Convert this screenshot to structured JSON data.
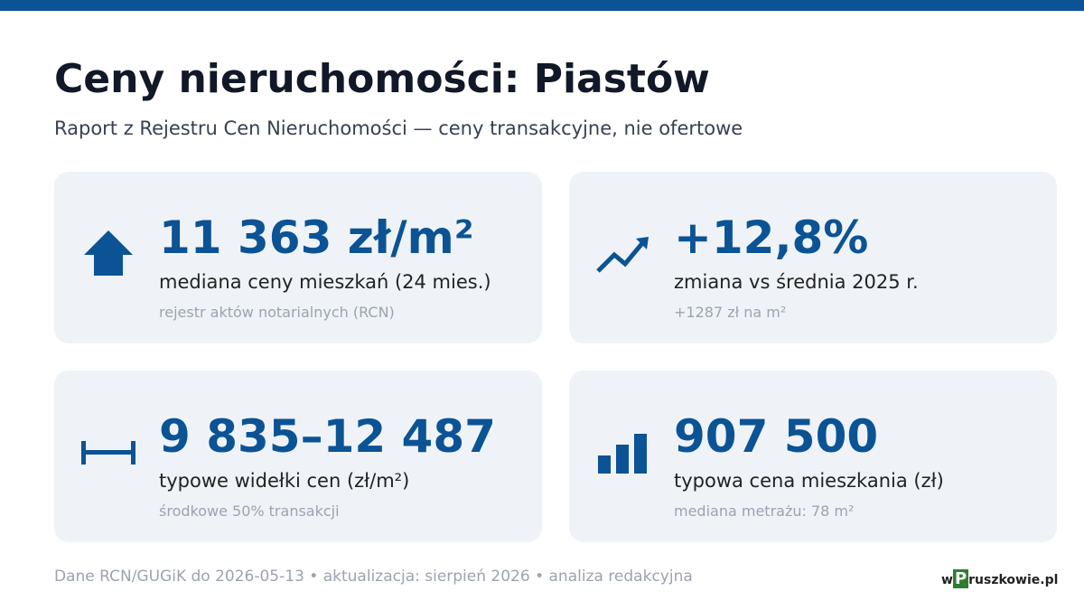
{
  "header": {
    "title": "Ceny nieruchomości: Piastów",
    "subtitle": "Raport z Rejestru Cen Nieruchomości — ceny transakcyjne, nie ofertowe"
  },
  "cards": [
    {
      "value": "11 363 zł/m²",
      "label": "mediana ceny mieszkań (24 mies.)",
      "note": "rejestr aktów notarialnych (RCN)"
    },
    {
      "value": "+12,8%",
      "label": "zmiana vs średnia 2025 r.",
      "note": "+1287 zł na m²"
    },
    {
      "value": "9 835–12 487",
      "label": "typowe widełki cen (zł/m²)",
      "note": "środkowe 50% transakcji"
    },
    {
      "value": "907 500",
      "label": "typowa cena mieszkania (zł)",
      "note": "mediana metrażu: 78 m²"
    }
  ],
  "footer": {
    "source": "Dane RCN/GUGiK do 2026-05-13 • aktualizacja: sierpień 2026 • analiza redakcyjna",
    "logo": {
      "w": "w",
      "p": "P",
      "rest": "ruszkowie.pl"
    }
  }
}
